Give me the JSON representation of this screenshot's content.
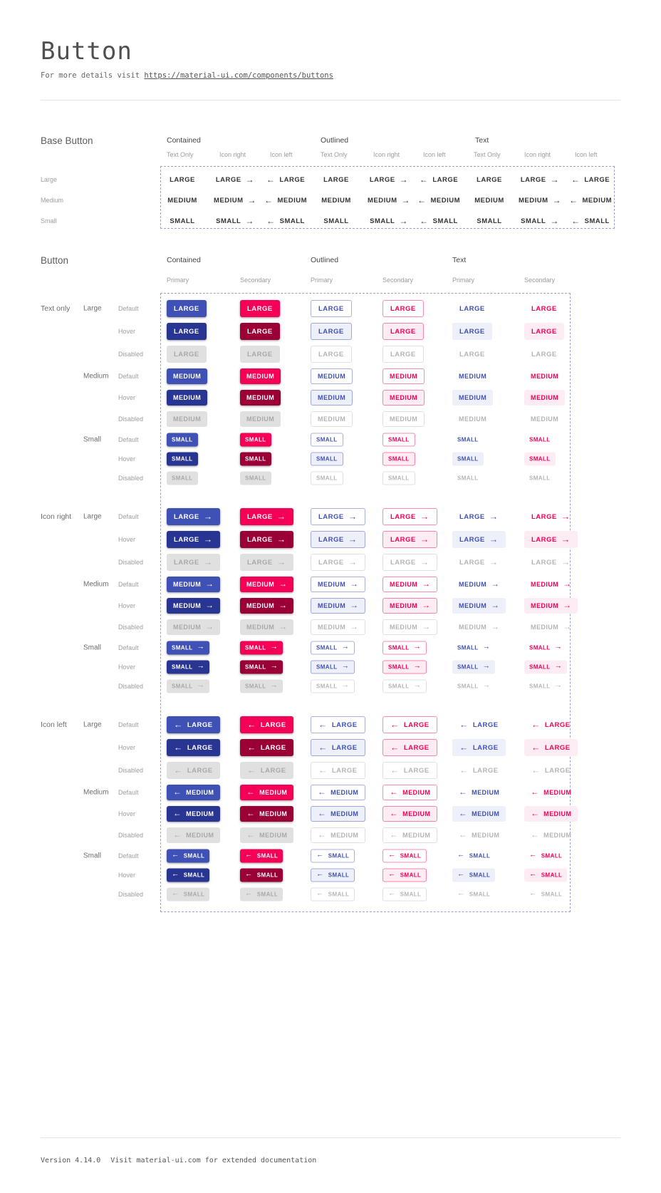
{
  "page": {
    "title": "Button",
    "subtitle_prefix": "For more details visit ",
    "subtitle_link": "https://material-ui.com/components/buttons",
    "footer_version": "Version 4.14.0",
    "footer_note": "Visit material-ui.com for extended documentation"
  },
  "icons": {
    "arrow_right": "→",
    "arrow_left": "←"
  },
  "colors": {
    "primary": "#3f51b5",
    "primary_hover": "#283593",
    "secondary": "#f50057",
    "secondary_hover": "#9a0036",
    "primary_tint": "#edeff9",
    "secondary_tint": "#fdecf3",
    "disabled_bg": "#e0e0e0",
    "disabled_text": "#a9a9a9",
    "outline_disabled_border": "#e0e0e0",
    "text_disabled": "#b5b5b5",
    "dash_border": "#9aa0c8"
  },
  "base_section": {
    "heading": "Base Button",
    "groups": [
      "Contained",
      "Outlined",
      "Text"
    ],
    "subcolumns": [
      "Text Only",
      "Icon right",
      "Icon left"
    ],
    "sizes": [
      {
        "label": "Large",
        "text": "LARGE"
      },
      {
        "label": "Medium",
        "text": "MEDIUM"
      },
      {
        "label": "Small",
        "text": "SMALL"
      }
    ]
  },
  "button_section": {
    "heading": "Button",
    "groups": [
      "Contained",
      "Outlined",
      "Text"
    ],
    "subcolumns": [
      "Primary",
      "Secondary"
    ],
    "icon_groups": [
      {
        "label": "Text only"
      },
      {
        "label": "Icon right"
      },
      {
        "label": "Icon left"
      }
    ],
    "sizes": [
      {
        "label": "Large",
        "text": "LARGE"
      },
      {
        "label": "Medium",
        "text": "MEDIUM"
      },
      {
        "label": "Small",
        "text": "SMALL"
      }
    ],
    "states": [
      "Default",
      "Hover",
      "Disabled"
    ]
  }
}
